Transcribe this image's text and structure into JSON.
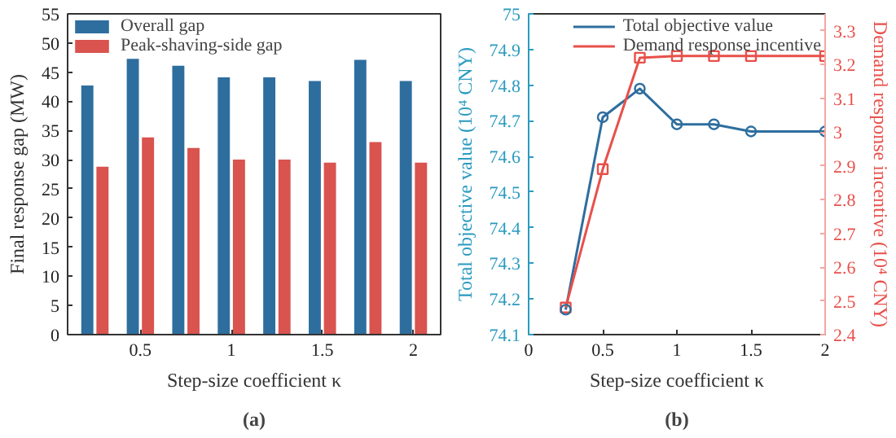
{
  "chart_data": [
    {
      "type": "bar",
      "categories": [
        null,
        "0.5",
        null,
        "1",
        null,
        "1.5",
        null,
        "2"
      ],
      "xlabel": "Step-size coefficient κ",
      "ylabel": "Final response gap (MW)",
      "ylim": [
        0,
        55
      ],
      "yticks": [
        0,
        5,
        10,
        15,
        20,
        25,
        30,
        35,
        40,
        45,
        50,
        55
      ],
      "grid": false,
      "legend": "top left",
      "annotations": [
        "(a)"
      ],
      "series": [
        {
          "name": "Overall gap",
          "color": "#2e6e9e",
          "values": [
            42.7,
            47.3,
            46.1,
            44.1,
            44.1,
            43.5,
            47.1,
            43.5
          ]
        },
        {
          "name": "Peak-shaving-side gap",
          "color": "#d9534f",
          "values": [
            28.8,
            33.8,
            32.0,
            30.0,
            30.0,
            29.5,
            33.0,
            29.5
          ]
        }
      ]
    },
    {
      "type": "line",
      "x": [
        0.25,
        0.5,
        0.75,
        1.0,
        1.25,
        1.5,
        2.0
      ],
      "xlabel": "Step-size coefficient κ",
      "ylabel": "Total objective value (10⁴ CNY)",
      "y2label": "Demand response incentive (10⁴ CNY)",
      "xlim": [
        0,
        2
      ],
      "xticks": [
        0,
        0.5,
        1,
        1.5,
        2
      ],
      "ylim": [
        74.1,
        75
      ],
      "yticks": [
        74.1,
        74.2,
        74.3,
        74.4,
        74.5,
        74.6,
        74.7,
        74.8,
        74.9,
        75
      ],
      "y2lim": [
        2.4,
        3.35
      ],
      "y2ticks": [
        2.4,
        2.5,
        2.6,
        2.7,
        2.8,
        2.9,
        3,
        3.1,
        3.2,
        3.3
      ],
      "grid": false,
      "legend": "top right",
      "annotations": [
        "(b)"
      ],
      "series": [
        {
          "name": "Total objective value",
          "color": "#2e6e9e",
          "marker": "circle",
          "values": [
            74.17,
            74.71,
            74.79,
            74.69,
            74.69,
            74.67,
            74.67
          ]
        },
        {
          "name": "Demand response incentive",
          "color": "#e8504a",
          "marker": "square",
          "axis": "y2",
          "values": [
            2.48,
            2.89,
            3.22,
            3.225,
            3.225,
            3.225,
            3.225
          ]
        }
      ]
    }
  ]
}
